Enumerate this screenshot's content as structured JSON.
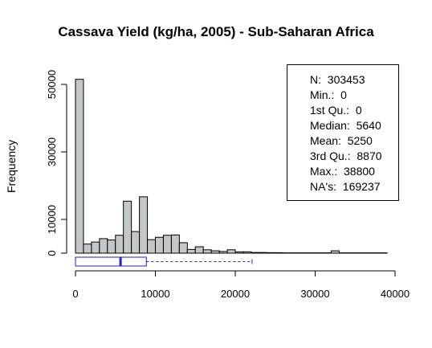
{
  "chart_data": {
    "type": "bar",
    "title": "Cassava Yield (kg/ha, 2005) - Sub-Saharan Africa",
    "ylabel": "Frequency",
    "xlabel": "",
    "bin_width": 1000,
    "xlim": [
      0,
      40000
    ],
    "ylim": [
      0,
      52000
    ],
    "x_ticks": [
      "0",
      "10000",
      "20000",
      "30000",
      "40000"
    ],
    "y_ticks": [
      "0",
      "10000",
      "30000",
      "50000"
    ],
    "x_tick_values": [
      0,
      10000,
      20000,
      30000,
      40000
    ],
    "y_tick_values": [
      0,
      10000,
      30000,
      50000
    ],
    "bins": [
      {
        "x0": 0,
        "x1": 1000,
        "count": 51500
      },
      {
        "x0": 1000,
        "x1": 2000,
        "count": 2700
      },
      {
        "x0": 2000,
        "x1": 3000,
        "count": 3300
      },
      {
        "x0": 3000,
        "x1": 4000,
        "count": 4300
      },
      {
        "x0": 4000,
        "x1": 5000,
        "count": 3900
      },
      {
        "x0": 5000,
        "x1": 6000,
        "count": 5300
      },
      {
        "x0": 6000,
        "x1": 7000,
        "count": 15400
      },
      {
        "x0": 7000,
        "x1": 8000,
        "count": 6400
      },
      {
        "x0": 8000,
        "x1": 9000,
        "count": 16700
      },
      {
        "x0": 9000,
        "x1": 10000,
        "count": 4000
      },
      {
        "x0": 10000,
        "x1": 11000,
        "count": 4700
      },
      {
        "x0": 11000,
        "x1": 12000,
        "count": 5300
      },
      {
        "x0": 12000,
        "x1": 13000,
        "count": 5400
      },
      {
        "x0": 13000,
        "x1": 14000,
        "count": 3100
      },
      {
        "x0": 14000,
        "x1": 15000,
        "count": 1100
      },
      {
        "x0": 15000,
        "x1": 16000,
        "count": 1900
      },
      {
        "x0": 16000,
        "x1": 17000,
        "count": 1000
      },
      {
        "x0": 17000,
        "x1": 18000,
        "count": 700
      },
      {
        "x0": 18000,
        "x1": 19000,
        "count": 500
      },
      {
        "x0": 19000,
        "x1": 20000,
        "count": 1000
      },
      {
        "x0": 20000,
        "x1": 21000,
        "count": 400
      },
      {
        "x0": 21000,
        "x1": 22000,
        "count": 400
      },
      {
        "x0": 22000,
        "x1": 23000,
        "count": 200
      },
      {
        "x0": 23000,
        "x1": 24000,
        "count": 200
      },
      {
        "x0": 24000,
        "x1": 25000,
        "count": 150
      },
      {
        "x0": 25000,
        "x1": 26000,
        "count": 150
      },
      {
        "x0": 26000,
        "x1": 27000,
        "count": 100
      },
      {
        "x0": 27000,
        "x1": 28000,
        "count": 100
      },
      {
        "x0": 28000,
        "x1": 29000,
        "count": 100
      },
      {
        "x0": 29000,
        "x1": 30000,
        "count": 100
      },
      {
        "x0": 30000,
        "x1": 31000,
        "count": 100
      },
      {
        "x0": 31000,
        "x1": 32000,
        "count": 100
      },
      {
        "x0": 32000,
        "x1": 33000,
        "count": 700
      },
      {
        "x0": 33000,
        "x1": 34000,
        "count": 100
      },
      {
        "x0": 34000,
        "x1": 35000,
        "count": 100
      },
      {
        "x0": 35000,
        "x1": 36000,
        "count": 100
      },
      {
        "x0": 36000,
        "x1": 37000,
        "count": 100
      },
      {
        "x0": 37000,
        "x1": 38000,
        "count": 100
      },
      {
        "x0": 38000,
        "x1": 39000,
        "count": 100
      }
    ],
    "boxplot": {
      "min": 0,
      "q1": 0,
      "median": 5640,
      "q3": 8870,
      "whisker_max": 22100
    },
    "summary": [
      {
        "label": "N:",
        "value": "303453"
      },
      {
        "label": "Min.:",
        "value": "0"
      },
      {
        "label": "1st Qu.:",
        "value": "0"
      },
      {
        "label": "Median:",
        "value": "5640"
      },
      {
        "label": "Mean:",
        "value": "5250"
      },
      {
        "label": "3rd Qu.:",
        "value": "8870"
      },
      {
        "label": "Max.:",
        "value": "38800"
      },
      {
        "label": "NA's:",
        "value": "169237"
      }
    ],
    "colors": {
      "bar_fill": "#c3c8c6",
      "bar_stroke": "#000000",
      "boxplot": "#2222cc"
    }
  }
}
